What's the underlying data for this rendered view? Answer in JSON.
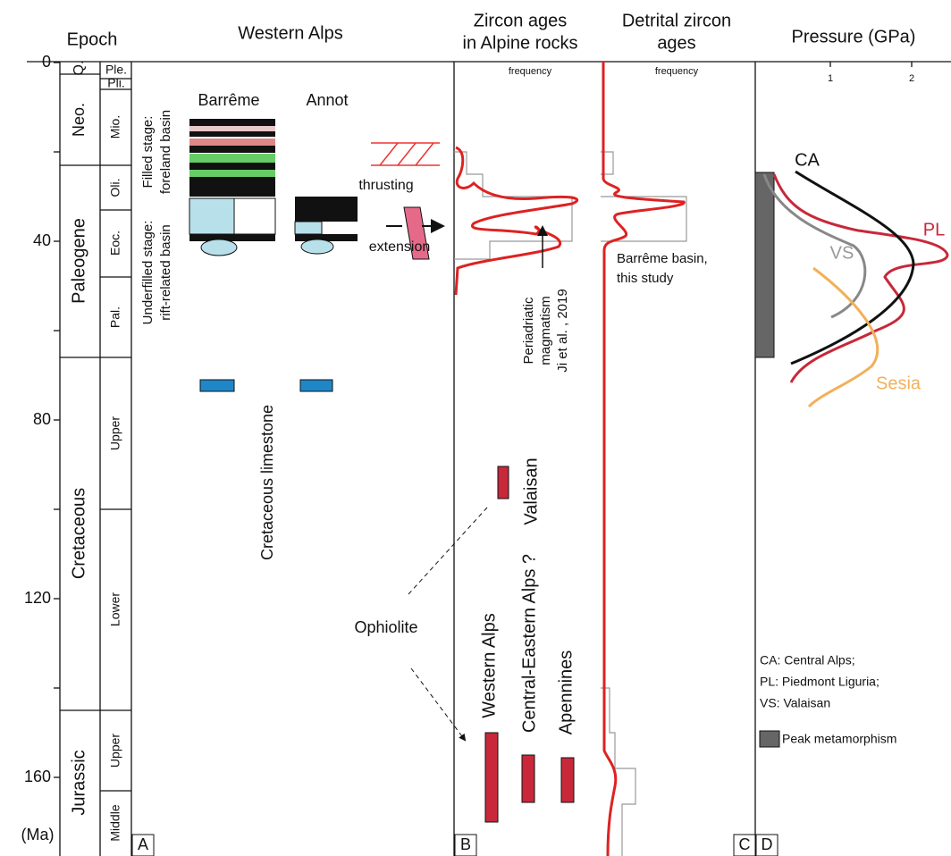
{
  "axis": {
    "ticks": [
      0,
      40,
      80,
      120,
      160
    ],
    "unit": "(Ma)"
  },
  "headers": {
    "epoch": "Epoch",
    "western_alps": "Western Alps",
    "zircon": [
      "Zircon ages",
      "in Alpine rocks"
    ],
    "detrital": [
      "Detrital zircon",
      "ages"
    ],
    "pressure": "Pressure (GPa)"
  },
  "frequency_labels": [
    "frequency",
    "frequency"
  ],
  "pressure_ticks": [
    1,
    2
  ],
  "eras": [
    "Q.",
    "Neo.",
    "Paleogene",
    "Cretaceous",
    "Jurassic"
  ],
  "epochs": [
    "Ple.",
    "Pli.",
    "Mio.",
    "Oli.",
    "Eoc.",
    "Pal.",
    "Upper",
    "Lower",
    "Upper",
    "Middle"
  ],
  "panel_a": {
    "localities": [
      "Barrême",
      "Annot"
    ],
    "stages": [
      [
        "Filled stage:",
        "foreland basin"
      ],
      [
        "Underfilled stage:",
        "rift-related basin"
      ]
    ],
    "processes": [
      "thrusting",
      "extension"
    ],
    "limestone": "Cretaceous limestone",
    "ophiolite": "Ophiolite"
  },
  "panel_b": {
    "magmatism": [
      "Periadriatic",
      "magmatism",
      "Ji et al. , 2019"
    ],
    "ophiolites": [
      "Western Alps",
      "Central-Eastern Alps ?",
      "Valaisan",
      "Apennines"
    ]
  },
  "panel_c": {
    "note": [
      "Barrême basin,",
      "this study"
    ]
  },
  "panel_d": {
    "curves": [
      "CA",
      "PL",
      "VS",
      "Sesia"
    ],
    "legend": [
      "CA: Central Alps;",
      "PL: Piedmont Liguria;",
      "VS: Valaisan",
      "Peak metamorphism"
    ]
  },
  "panel_letters": [
    "A",
    "B",
    "C",
    "D"
  ]
}
